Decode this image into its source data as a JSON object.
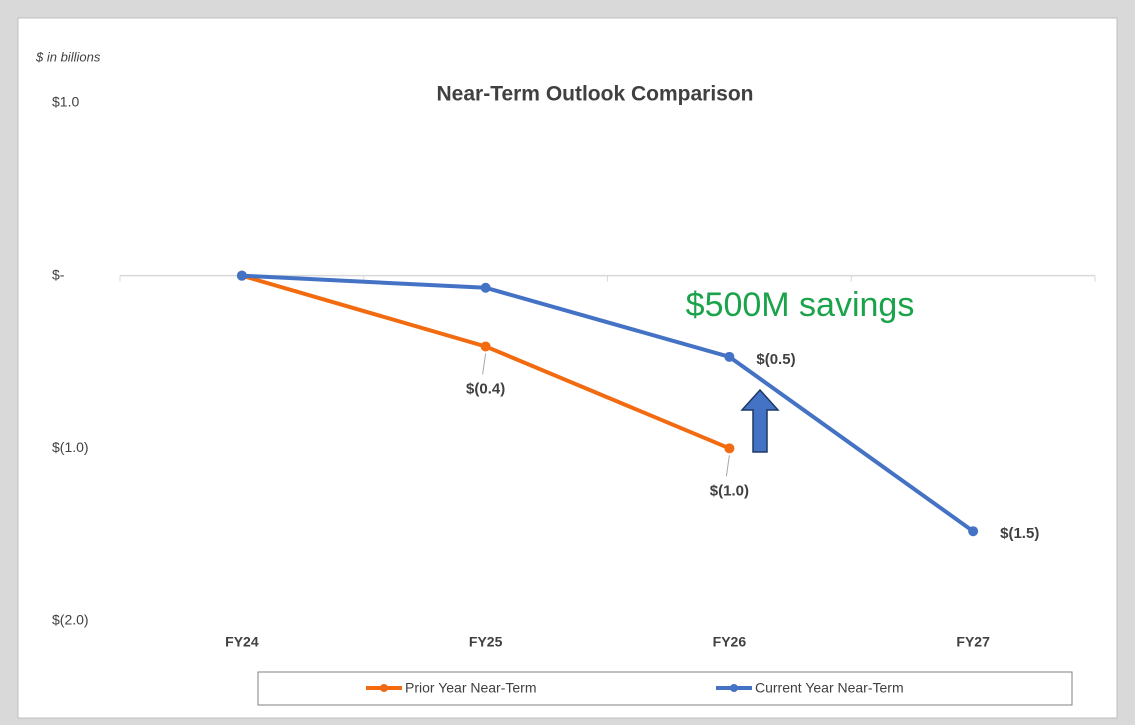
{
  "chart_data": {
    "type": "line",
    "title": "Near-Term Outlook Comparison",
    "units_label": "$ in billions",
    "annotation": "$500M savings",
    "categories": [
      "FY24",
      "FY25",
      "FY26",
      "FY27"
    ],
    "series": [
      {
        "name": "Prior Year Near-Term",
        "color": "#f26b10",
        "values": [
          0,
          -0.41,
          -1.0,
          null
        ],
        "value_labels": [
          null,
          "$(0.4)",
          "$(1.0)",
          null
        ]
      },
      {
        "name": "Current Year Near-Term",
        "color": "#4472c4",
        "values": [
          0,
          -0.07,
          -0.47,
          -1.48
        ],
        "value_labels": [
          null,
          null,
          "$(0.5)",
          "$(1.5)"
        ]
      }
    ],
    "ylim": [
      -2,
      1
    ],
    "yticks": [
      {
        "value": 1,
        "label": "$1.0"
      },
      {
        "value": 0,
        "label": "$-"
      },
      {
        "value": -1,
        "label": "$(1.0)"
      },
      {
        "value": -2,
        "label": "$(2.0)"
      }
    ],
    "grid": false,
    "legend": "bottom"
  }
}
